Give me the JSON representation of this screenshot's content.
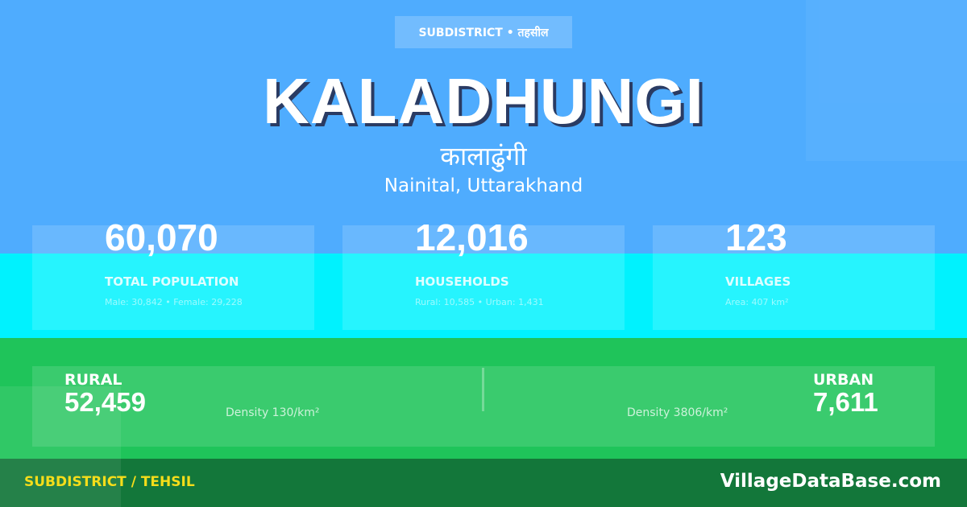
{
  "colors": {
    "top": "#4facfe",
    "middle": "#00f2fe",
    "bottom": "#1fc45a",
    "footer": "#13773a",
    "footer_label": "#f5dd1a"
  },
  "badge": "SUBDISTRICT • तहसील",
  "title": "KALADHUNGI",
  "title_hindi": "कालाढुंगी",
  "location": "Nainital, Uttarakhand",
  "stats": [
    {
      "value": "60,070",
      "label": "TOTAL POPULATION",
      "sub": "Male: 30,842 • Female: 29,228"
    },
    {
      "value": "12,016",
      "label": "HOUSEHOLDS",
      "sub": "Rural: 10,585 • Urban: 1,431"
    },
    {
      "value": "123",
      "label": "VILLAGES",
      "sub": "Area: 407 km²"
    }
  ],
  "rural": {
    "label": "RURAL",
    "value": "52,459",
    "density": "Density 130/km²"
  },
  "urban": {
    "label": "URBAN",
    "value": "7,611",
    "density": "Density 3806/km²"
  },
  "footer": {
    "type": "SUBDISTRICT / TEHSIL",
    "site": "VillageDataBase.com"
  }
}
